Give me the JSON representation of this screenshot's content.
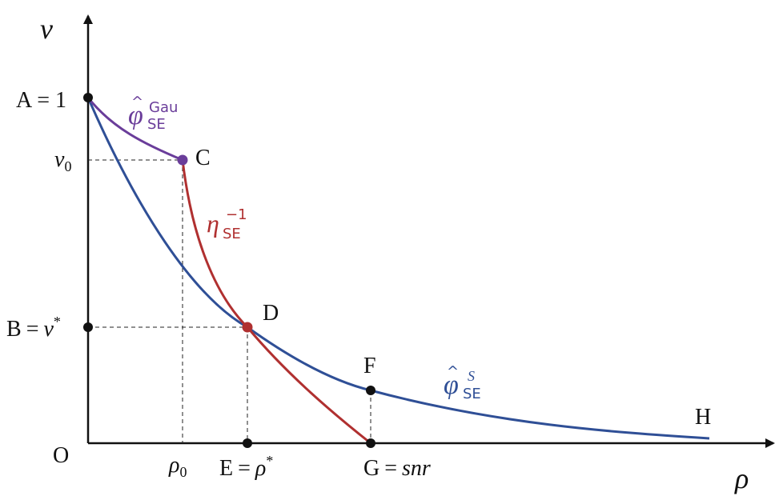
{
  "axes": {
    "y_label": "v",
    "x_label": "ρ",
    "origin_label": "O"
  },
  "points": {
    "A": {
      "name": "A",
      "eq": "= 1"
    },
    "v0": {
      "sym": "v",
      "sub": "0"
    },
    "C": "C",
    "B": {
      "name": "B",
      "eq": "=",
      "sym": "v",
      "sup": "*"
    },
    "D": "D",
    "rho0": {
      "sym": "ρ",
      "sub": "0"
    },
    "E": {
      "name": "E",
      "eq": "=",
      "sym": "ρ",
      "sup": "*"
    },
    "F": "F",
    "G": {
      "name": "G",
      "eq": "=",
      "sym": "snr"
    },
    "H": "H"
  },
  "curves": {
    "gau": {
      "sym": "φ",
      "hat": "^",
      "sub": "SE",
      "sup": "Gau"
    },
    "eta": {
      "sym": "η",
      "sub": "SE",
      "sup": "−1"
    },
    "blue": {
      "sym": "φ",
      "hat": "^",
      "sub": "SE",
      "sup": "S"
    }
  },
  "colors": {
    "axis": "#111111",
    "purple": "#6a3d9a",
    "red": "#b03030",
    "blue": "#2f4f96",
    "point": "#111111"
  }
}
